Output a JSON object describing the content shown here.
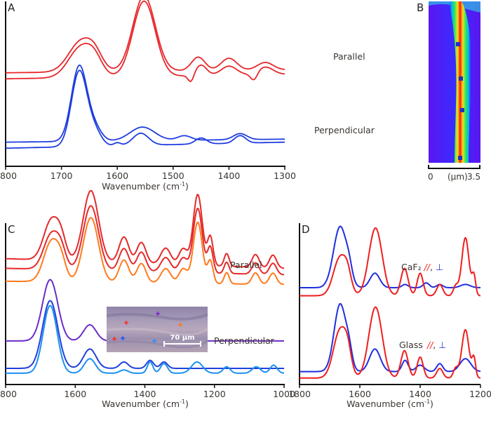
{
  "chart_data": [
    {
      "panel": "A",
      "type": "line",
      "title": "",
      "xlabel": "Wavenumber (cm⁻¹)",
      "ylabel": "",
      "xlim": [
        1800,
        1300
      ],
      "xticks": [
        1800,
        1700,
        1600,
        1500,
        1400,
        1300
      ],
      "grid": false,
      "annotations": [
        "Parallel",
        "Perpendicular"
      ],
      "series": [
        {
          "name": "Parallel 1",
          "color": "#e8262a",
          "offset": 0.62,
          "peaks": [
            [
              1665,
              0.2,
              22
            ],
            [
              1640,
              0.08,
              14
            ],
            [
              1552,
              0.5,
              20
            ],
            [
              1455,
              0.09,
              12
            ],
            [
              1400,
              0.08,
              14
            ],
            [
              1335,
              0.05,
              14
            ]
          ],
          "slope": 0.02
        },
        {
          "name": "Parallel 2",
          "color": "#e8262a",
          "offset": 0.58,
          "peaks": [
            [
              1665,
              0.2,
              22
            ],
            [
              1640,
              0.08,
              14
            ],
            [
              1552,
              0.5,
              20
            ],
            [
              1450,
              0.07,
              10
            ],
            [
              1400,
              0.06,
              14
            ],
            [
              1335,
              0.05,
              14
            ]
          ],
          "dips": [
            [
              1468,
              0.05,
              5
            ],
            [
              1355,
              0.05,
              6
            ]
          ],
          "slope": 0.03
        },
        {
          "name": "Perpendicular 1",
          "color": "#1f3de0",
          "offset": 0.16,
          "peaks": [
            [
              1668,
              0.5,
              14
            ],
            [
              1640,
              0.08,
              12
            ],
            [
              1555,
              0.09,
              22
            ],
            [
              1480,
              0.03,
              12
            ],
            [
              1380,
              0.04,
              12
            ]
          ],
          "slope": 0.02
        },
        {
          "name": "Perpendicular 2",
          "color": "#1f3de0",
          "offset": 0.12,
          "peaks": [
            [
              1668,
              0.5,
              14
            ],
            [
              1640,
              0.09,
              12
            ],
            [
              1558,
              0.08,
              14
            ],
            [
              1600,
              0.02,
              6
            ],
            [
              1450,
              0.04,
              10
            ],
            [
              1380,
              0.05,
              10
            ]
          ],
          "slope": 0.04
        }
      ]
    },
    {
      "panel": "B",
      "type": "heatmap",
      "title": "",
      "xlabel": "(μm)",
      "xlim": [
        0,
        3.5
      ],
      "xticks": [
        "0",
        "3.5"
      ],
      "colormap": [
        "#5a16f0",
        "#1a40ff",
        "#00c8e0",
        "#22ee55",
        "#f0e020",
        "#ff8010",
        "#f01818"
      ],
      "markers": 4,
      "marker_color": "#2030c0"
    },
    {
      "panel": "C",
      "type": "line",
      "title": "",
      "xlabel": "Wavenumber (cm⁻¹)",
      "xlim": [
        1800,
        1000
      ],
      "xticks": [
        1800,
        1600,
        1400,
        1200,
        1000
      ],
      "grid": false,
      "annotations": [
        "Parallel",
        "Perpendicular"
      ],
      "inset": {
        "scale_bar_label": "70 μm",
        "markers": [
          {
            "color": "#ff2a2a"
          },
          {
            "color": "#7a28c8"
          },
          {
            "color": "#ff7a20"
          },
          {
            "color": "#ff2a2a"
          },
          {
            "color": "#2a50ff"
          },
          {
            "color": "#2a8cff"
          }
        ]
      },
      "series": [
        {
          "name": "Parallel red 1",
          "color": "#e42a2a",
          "offset": 0.78,
          "peaks": [
            [
              1668,
              0.25,
              22
            ],
            [
              1640,
              0.1,
              14
            ],
            [
              1555,
              0.44,
              22
            ],
            [
              1460,
              0.16,
              14
            ],
            [
              1410,
              0.13,
              13
            ],
            [
              1340,
              0.1,
              14
            ],
            [
              1290,
              0.1,
              12
            ],
            [
              1248,
              0.44,
              13
            ],
            [
              1212,
              0.18,
              8
            ],
            [
              1165,
              0.08,
              7
            ],
            [
              1082,
              0.08,
              10
            ],
            [
              1032,
              0.08,
              10
            ]
          ],
          "slope": -0.06
        },
        {
          "name": "Parallel red 2",
          "color": "#e42a2a",
          "offset": 0.72,
          "peaks": [
            [
              1668,
              0.22,
              22
            ],
            [
              1640,
              0.09,
              14
            ],
            [
              1555,
              0.4,
              22
            ],
            [
              1460,
              0.14,
              14
            ],
            [
              1410,
              0.12,
              13
            ],
            [
              1340,
              0.09,
              14
            ],
            [
              1290,
              0.09,
              12
            ],
            [
              1248,
              0.4,
              13
            ],
            [
              1212,
              0.16,
              8
            ],
            [
              1165,
              0.07,
              7
            ],
            [
              1082,
              0.07,
              10
            ],
            [
              1032,
              0.07,
              10
            ]
          ],
          "slope": -0.04
        },
        {
          "name": "Parallel orange",
          "color": "#ff7a1e",
          "offset": 0.64,
          "peaks": [
            [
              1668,
              0.25,
              22
            ],
            [
              1640,
              0.09,
              14
            ],
            [
              1555,
              0.4,
              22
            ],
            [
              1460,
              0.14,
              14
            ],
            [
              1410,
              0.12,
              13
            ],
            [
              1340,
              0.09,
              14
            ],
            [
              1290,
              0.09,
              12
            ],
            [
              1248,
              0.38,
              13
            ],
            [
              1212,
              0.14,
              8
            ],
            [
              1165,
              0.07,
              7
            ],
            [
              1082,
              0.07,
              10
            ],
            [
              1032,
              0.07,
              10
            ]
          ],
          "slope": -0.02
        },
        {
          "name": "Perpendicular purple",
          "color": "#6a2cc8",
          "offset": 0.27,
          "peaks": [
            [
              1672,
              0.38,
              22
            ],
            [
              1558,
              0.1,
              18
            ],
            [
              1460,
              0.02,
              12
            ],
            [
              1385,
              0.03,
              10
            ],
            [
              1340,
              0.02,
              10
            ]
          ],
          "slope": 0.0
        },
        {
          "name": "Perpendicular blue",
          "color": "#2040dc",
          "offset": 0.1,
          "peaks": [
            [
              1672,
              0.42,
              22
            ],
            [
              1558,
              0.12,
              18
            ],
            [
              1460,
              0.04,
              12
            ],
            [
              1385,
              0.05,
              10
            ],
            [
              1345,
              0.04,
              10
            ]
          ],
          "slope": 0.0
        },
        {
          "name": "Perpendicular light blue",
          "color": "#1a90f0",
          "offset": 0.07,
          "peaks": [
            [
              1672,
              0.42,
              20
            ],
            [
              1558,
              0.09,
              16
            ],
            [
              1460,
              0.02,
              12
            ],
            [
              1385,
              0.07,
              8
            ],
            [
              1345,
              0.06,
              10
            ],
            [
              1250,
              0.07,
              16
            ],
            [
              1165,
              0.04,
              10
            ],
            [
              1080,
              0.04,
              12
            ],
            [
              1030,
              0.05,
              10
            ]
          ],
          "slope": 0.0
        }
      ]
    },
    {
      "panel": "D",
      "type": "line",
      "title": "",
      "xlabel": "Wavenumber (cm⁻¹)",
      "xlim": [
        1800,
        1200
      ],
      "xticks": [
        1800,
        1600,
        1400,
        1200
      ],
      "grid": false,
      "annotations": [
        {
          "text": "CaF₂",
          "parallel": "//",
          "perpendicular": "⊥"
        },
        {
          "text": "Glass",
          "parallel": "//",
          "perpendicular": "⊥"
        }
      ],
      "series": [
        {
          "name": "CaF2 perpendicular",
          "color": "#1f2ee0",
          "offset": 0.6,
          "peaks": [
            [
              1665,
              0.38,
              22
            ],
            [
              1635,
              0.06,
              10
            ],
            [
              1550,
              0.09,
              16
            ],
            [
              1450,
              0.02,
              10
            ],
            [
              1380,
              0.03,
              10
            ],
            [
              1335,
              0.02,
              10
            ],
            [
              1250,
              0.02,
              16
            ]
          ]
        },
        {
          "name": "CaF2 parallel",
          "color": "#f01e1e",
          "offset": 0.55,
          "peaks": [
            [
              1665,
              0.24,
              22
            ],
            [
              1640,
              0.08,
              12
            ],
            [
              1548,
              0.42,
              22
            ],
            [
              1452,
              0.17,
              12
            ],
            [
              1400,
              0.14,
              10
            ],
            [
              1335,
              0.07,
              10
            ],
            [
              1282,
              0.06,
              8
            ],
            [
              1250,
              0.36,
              12
            ],
            [
              1222,
              0.12,
              6
            ]
          ]
        },
        {
          "name": "Glass perpendicular",
          "color": "#1f2ee0",
          "offset": 0.08,
          "peaks": [
            [
              1665,
              0.42,
              20
            ],
            [
              1635,
              0.08,
              10
            ],
            [
              1550,
              0.14,
              18
            ],
            [
              1450,
              0.07,
              10
            ],
            [
              1400,
              0.04,
              14
            ],
            [
              1335,
              0.05,
              10
            ],
            [
              1250,
              0.08,
              18
            ]
          ]
        },
        {
          "name": "Glass parallel",
          "color": "#f01e1e",
          "offset": 0.04,
          "peaks": [
            [
              1665,
              0.3,
              22
            ],
            [
              1640,
              0.1,
              12
            ],
            [
              1548,
              0.44,
              22
            ],
            [
              1452,
              0.17,
              12
            ],
            [
              1400,
              0.13,
              10
            ],
            [
              1335,
              0.06,
              10
            ],
            [
              1282,
              0.06,
              8
            ],
            [
              1250,
              0.3,
              12
            ],
            [
              1222,
              0.12,
              6
            ]
          ]
        }
      ]
    }
  ]
}
